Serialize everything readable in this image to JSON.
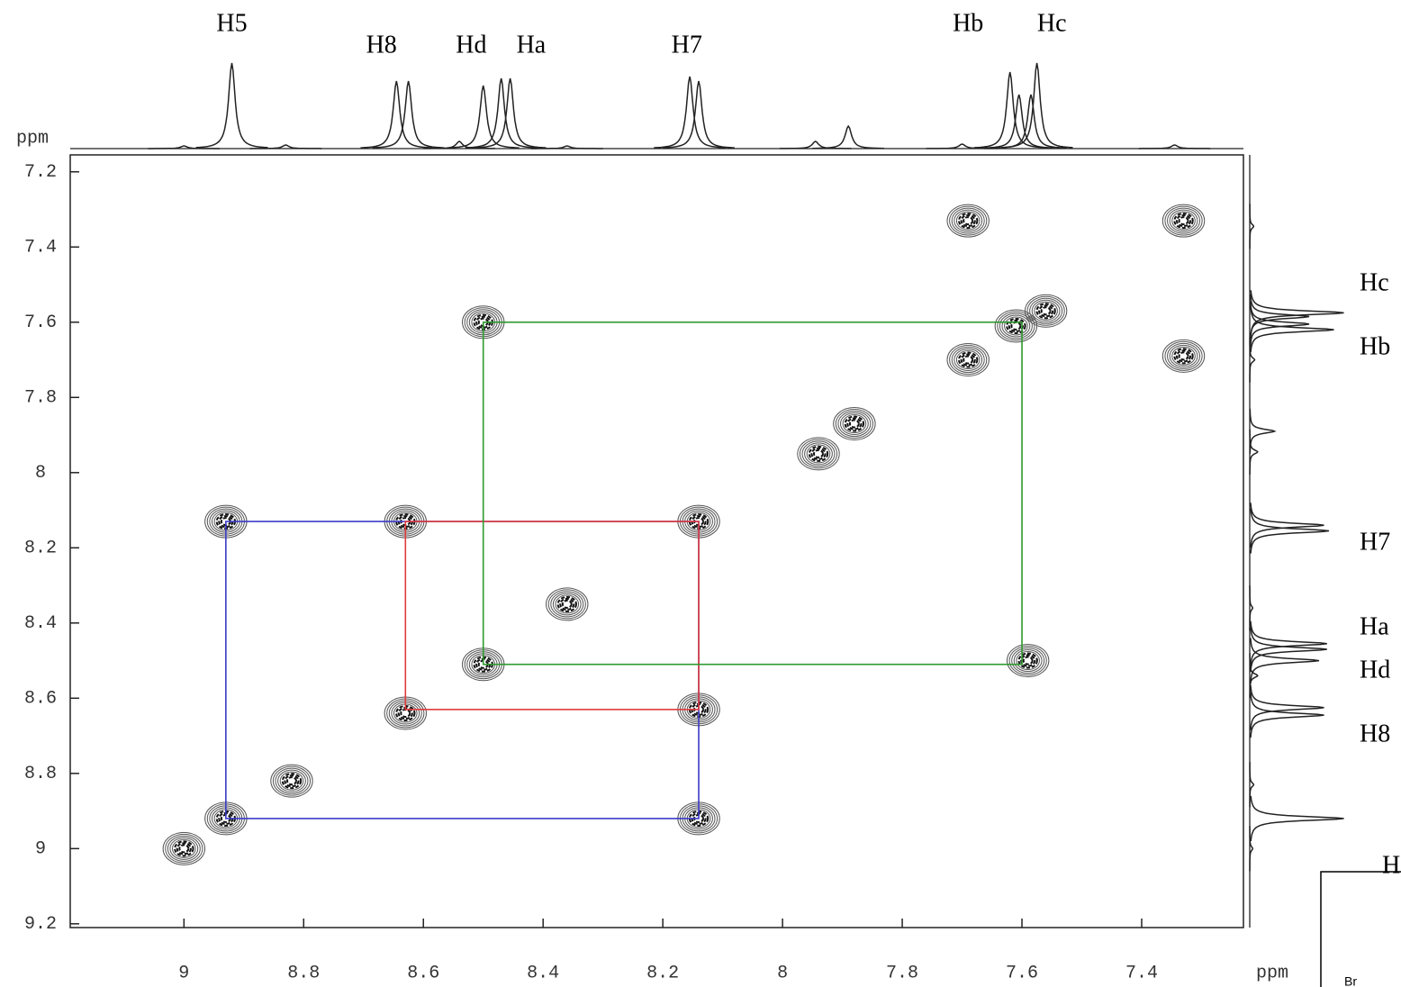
{
  "chart_data": {
    "type": "contour",
    "xlabel": "ppm",
    "ylabel": "ppm",
    "xlim": [
      9.19,
      7.23
    ],
    "ylim": [
      7.155,
      9.21
    ],
    "xticks": [
      9.0,
      8.8,
      8.6,
      8.4,
      8.2,
      8.0,
      7.8,
      7.6,
      7.4
    ],
    "yticks": [
      7.2,
      7.4,
      7.6,
      7.8,
      8.0,
      8.2,
      8.4,
      8.6,
      8.8,
      9.0,
      9.2
    ],
    "x": [
      9.0,
      8.93,
      8.82,
      8.63,
      8.5,
      8.36,
      7.94,
      7.88,
      7.69,
      7.61,
      7.56,
      8.5,
      8.93,
      8.63,
      8.14,
      8.14,
      8.14,
      7.59,
      7.33,
      7.69,
      7.33
    ],
    "y": [
      9.0,
      8.92,
      8.82,
      8.64,
      8.51,
      8.35,
      7.95,
      7.87,
      7.7,
      7.61,
      7.57,
      7.6,
      8.13,
      8.13,
      8.13,
      8.63,
      8.92,
      8.5,
      7.33,
      7.33,
      7.69
    ],
    "boxes": [
      {
        "color": "#3a3ac8",
        "x": [
          8.93,
          8.14
        ],
        "y": [
          8.13,
          8.92
        ]
      },
      {
        "color": "#e03a3a",
        "x": [
          8.63,
          8.14
        ],
        "y": [
          8.13,
          8.63
        ]
      },
      {
        "color": "#2e9a2e",
        "x": [
          8.5,
          7.6
        ],
        "y": [
          7.6,
          8.51
        ]
      }
    ],
    "projection": {
      "x": [
        9.0,
        8.92,
        8.83,
        8.645,
        8.625,
        8.54,
        8.5,
        8.47,
        8.455,
        8.36,
        8.155,
        8.14,
        7.945,
        7.89,
        7.7,
        7.62,
        7.605,
        7.585,
        7.575,
        7.345
      ],
      "height": [
        3,
        95,
        4,
        75,
        75,
        8,
        70,
        78,
        78,
        3,
        80,
        75,
        8,
        25,
        5,
        85,
        60,
        60,
        95,
        4
      ]
    },
    "top_labels": [
      {
        "text": "H5",
        "x": 8.92
      },
      {
        "text": "H8",
        "x": 8.67
      },
      {
        "text": "Hd",
        "x": 8.52
      },
      {
        "text": "Ha",
        "x": 8.42
      },
      {
        "text": "H7",
        "x": 8.16
      },
      {
        "text": "Hb",
        "x": 7.69
      },
      {
        "text": "Hc",
        "x": 7.55
      }
    ],
    "side_labels": [
      {
        "text": "Hc",
        "y": 7.5
      },
      {
        "text": "Hb",
        "y": 7.67
      },
      {
        "text": "H7",
        "y": 8.19
      },
      {
        "text": "Ha",
        "y": 8.415
      },
      {
        "text": "Hd",
        "y": 8.53
      },
      {
        "text": "H8",
        "y": 8.7
      },
      {
        "text": "H",
        "y": 9.05
      }
    ],
    "structure_label": "Br"
  }
}
